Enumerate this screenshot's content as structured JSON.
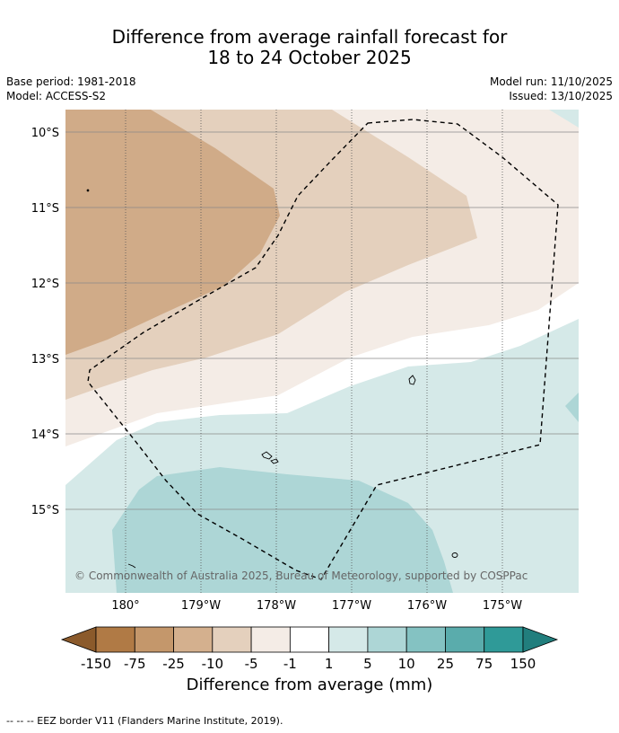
{
  "title": {
    "line1": "Difference from average rainfall forecast for",
    "line2": "18 to 24 October 2025"
  },
  "meta": {
    "base_period": "Base period: 1981-2018",
    "model": "Model: ACCESS-S2",
    "model_run": "Model run: 11/10/2025",
    "issued": "Issued: 13/10/2025"
  },
  "map": {
    "lat_labels": [
      "10°S",
      "11°S",
      "12°S",
      "13°S",
      "14°S",
      "15°S"
    ],
    "lon_labels": [
      "180°",
      "179°W",
      "178°W",
      "177°W",
      "176°W",
      "175°W"
    ],
    "copyright": "© Commonwealth of Australia 2025, Bureau of Meteorology, supported by COSPPac"
  },
  "colorbar": {
    "title": "Difference from average (mm)",
    "ticks": [
      "-150",
      "-75",
      "-25",
      "-10",
      "-5",
      "-1",
      "1",
      "5",
      "10",
      "25",
      "75",
      "150"
    ],
    "colors": [
      "#8b5a2b",
      "#b07a45",
      "#c4976b",
      "#d4b08e",
      "#e4d0bd",
      "#f4ece6",
      "#ffffff",
      "#d5e9e8",
      "#add6d6",
      "#84c2c2",
      "#5aacac",
      "#2f9a98",
      "#217e7d"
    ]
  },
  "footer": "-- -- -- EEZ border V11 (Flanders Marine Institute, 2019)."
}
